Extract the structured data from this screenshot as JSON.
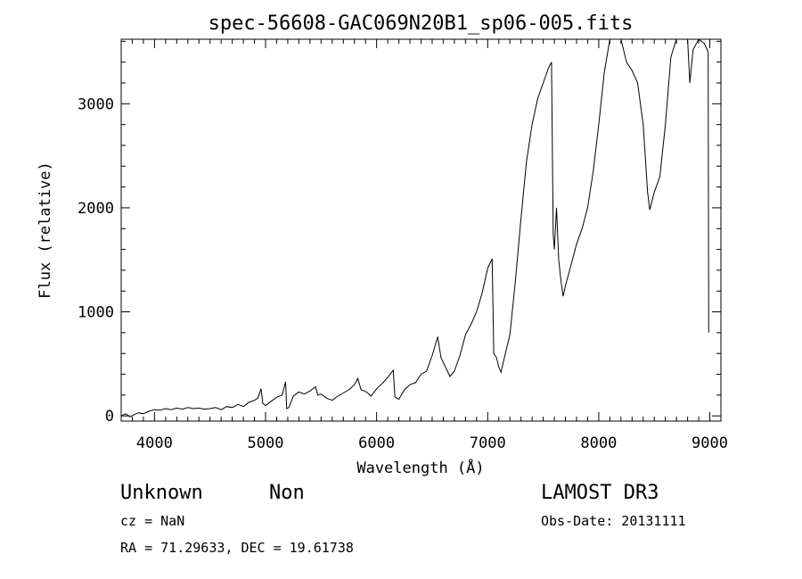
{
  "chart_data": {
    "type": "line",
    "title": "spec-56608-GAC069N20B1_sp06-005.fits",
    "xlabel": "Wavelength (Å)",
    "ylabel": "Flux (relative)",
    "xlim": [
      3700,
      9100
    ],
    "ylim": [
      -50,
      3620
    ],
    "x_ticks": [
      4000,
      5000,
      6000,
      7000,
      8000,
      9000
    ],
    "x_tick_labels": [
      "4000",
      "5000",
      "6000",
      "7000",
      "8000",
      "9000"
    ],
    "y_ticks": [
      0,
      1000,
      2000,
      3000
    ],
    "y_tick_labels": [
      "0",
      "1000",
      "2000",
      "3000"
    ],
    "grid": false,
    "series": [
      {
        "points": [
          [
            3700,
            0
          ],
          [
            3740,
            20
          ],
          [
            3780,
            -10
          ],
          [
            3820,
            15
          ],
          [
            3860,
            30
          ],
          [
            3900,
            20
          ],
          [
            3950,
            45
          ],
          [
            4000,
            60
          ],
          [
            4050,
            55
          ],
          [
            4100,
            70
          ],
          [
            4150,
            60
          ],
          [
            4200,
            75
          ],
          [
            4250,
            65
          ],
          [
            4300,
            80
          ],
          [
            4350,
            70
          ],
          [
            4400,
            75
          ],
          [
            4450,
            65
          ],
          [
            4500,
            70
          ],
          [
            4550,
            80
          ],
          [
            4600,
            60
          ],
          [
            4650,
            90
          ],
          [
            4700,
            80
          ],
          [
            4750,
            110
          ],
          [
            4800,
            90
          ],
          [
            4850,
            130
          ],
          [
            4900,
            150
          ],
          [
            4930,
            170
          ],
          [
            4960,
            260
          ],
          [
            4975,
            120
          ],
          [
            5000,
            100
          ],
          [
            5050,
            140
          ],
          [
            5100,
            180
          ],
          [
            5150,
            200
          ],
          [
            5180,
            330
          ],
          [
            5190,
            70
          ],
          [
            5210,
            80
          ],
          [
            5250,
            190
          ],
          [
            5300,
            230
          ],
          [
            5350,
            210
          ],
          [
            5400,
            240
          ],
          [
            5450,
            280
          ],
          [
            5470,
            200
          ],
          [
            5500,
            210
          ],
          [
            5550,
            170
          ],
          [
            5600,
            150
          ],
          [
            5650,
            190
          ],
          [
            5700,
            220
          ],
          [
            5750,
            250
          ],
          [
            5800,
            300
          ],
          [
            5830,
            360
          ],
          [
            5860,
            250
          ],
          [
            5890,
            240
          ],
          [
            5920,
            220
          ],
          [
            5950,
            190
          ],
          [
            6000,
            260
          ],
          [
            6050,
            310
          ],
          [
            6100,
            370
          ],
          [
            6150,
            440
          ],
          [
            6165,
            180
          ],
          [
            6200,
            160
          ],
          [
            6250,
            250
          ],
          [
            6300,
            300
          ],
          [
            6350,
            320
          ],
          [
            6400,
            400
          ],
          [
            6450,
            430
          ],
          [
            6500,
            580
          ],
          [
            6550,
            760
          ],
          [
            6580,
            560
          ],
          [
            6620,
            470
          ],
          [
            6660,
            380
          ],
          [
            6700,
            430
          ],
          [
            6750,
            580
          ],
          [
            6800,
            780
          ],
          [
            6850,
            880
          ],
          [
            6900,
            1000
          ],
          [
            6950,
            1180
          ],
          [
            7000,
            1420
          ],
          [
            7040,
            1510
          ],
          [
            7055,
            600
          ],
          [
            7080,
            560
          ],
          [
            7100,
            470
          ],
          [
            7120,
            420
          ],
          [
            7150,
            560
          ],
          [
            7200,
            780
          ],
          [
            7250,
            1300
          ],
          [
            7300,
            1900
          ],
          [
            7350,
            2450
          ],
          [
            7400,
            2800
          ],
          [
            7450,
            3050
          ],
          [
            7500,
            3200
          ],
          [
            7550,
            3350
          ],
          [
            7575,
            3400
          ],
          [
            7590,
            1750
          ],
          [
            7600,
            1600
          ],
          [
            7620,
            2000
          ],
          [
            7640,
            1500
          ],
          [
            7660,
            1300
          ],
          [
            7680,
            1150
          ],
          [
            7700,
            1250
          ],
          [
            7750,
            1450
          ],
          [
            7800,
            1650
          ],
          [
            7850,
            1800
          ],
          [
            7900,
            2000
          ],
          [
            7950,
            2350
          ],
          [
            8000,
            2800
          ],
          [
            8050,
            3300
          ],
          [
            8100,
            3620
          ],
          [
            8200,
            3620
          ],
          [
            8250,
            3400
          ],
          [
            8300,
            3320
          ],
          [
            8350,
            3200
          ],
          [
            8400,
            2800
          ],
          [
            8440,
            2150
          ],
          [
            8460,
            1980
          ],
          [
            8500,
            2150
          ],
          [
            8550,
            2300
          ],
          [
            8600,
            2800
          ],
          [
            8650,
            3450
          ],
          [
            8700,
            3620
          ],
          [
            8800,
            3620
          ],
          [
            8820,
            3200
          ],
          [
            8850,
            3520
          ],
          [
            8900,
            3620
          ],
          [
            8950,
            3580
          ],
          [
            8985,
            3500
          ],
          [
            8990,
            800
          ]
        ]
      }
    ]
  },
  "info": {
    "object_class": "Unknown",
    "object_subclass": "Non",
    "cz": "cz = NaN",
    "coords": "RA =  71.29633, DEC =  19.61738",
    "survey": "LAMOST DR3",
    "obs_date": "Obs-Date: 20131111"
  }
}
